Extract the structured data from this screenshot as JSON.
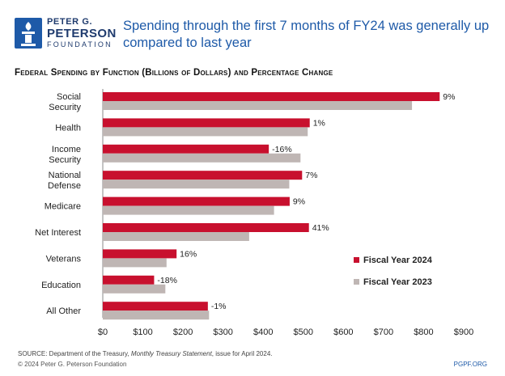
{
  "header": {
    "logo_line1": "PETER G.",
    "logo_line2": "PETERSON",
    "logo_line3": "FOUNDATION",
    "headline": "Spending through the first 7 months of FY24 was generally up compared to last year"
  },
  "chart_data": {
    "type": "bar",
    "orientation": "horizontal",
    "title": "Federal Spending by Function (Billions of Dollars) and Percentage Change",
    "categories": [
      "Social Security",
      "Health",
      "Income Security",
      "National Defense",
      "Medicare",
      "Net Interest",
      "Veterans",
      "Education",
      "All Other"
    ],
    "series": [
      {
        "name": "Fiscal Year 2024",
        "color": "#c8102e",
        "values": [
          840,
          516,
          414,
          497,
          466,
          514,
          184,
          128,
          262
        ]
      },
      {
        "name": "Fiscal Year 2023",
        "color": "#bfb6b4",
        "values": [
          771,
          511,
          493,
          465,
          427,
          365,
          159,
          156,
          265
        ]
      }
    ],
    "pct_change_labels": [
      "9%",
      "1%",
      "-16%",
      "7%",
      "9%",
      "41%",
      "16%",
      "-18%",
      "-1%"
    ],
    "xlim": [
      0,
      900
    ],
    "xticks": [
      "$0",
      "$100",
      "$200",
      "$300",
      "$400",
      "$500",
      "$600",
      "$700",
      "$800",
      "$900"
    ],
    "grid": false,
    "legend_position": "right"
  },
  "footer": {
    "source": "SOURCE: Department of the Treasury, Monthly Treasury Statement, issue for April 2024.",
    "copyright": "© 2024 Peter G. Peterson Foundation",
    "site": "PGPF.ORG"
  }
}
